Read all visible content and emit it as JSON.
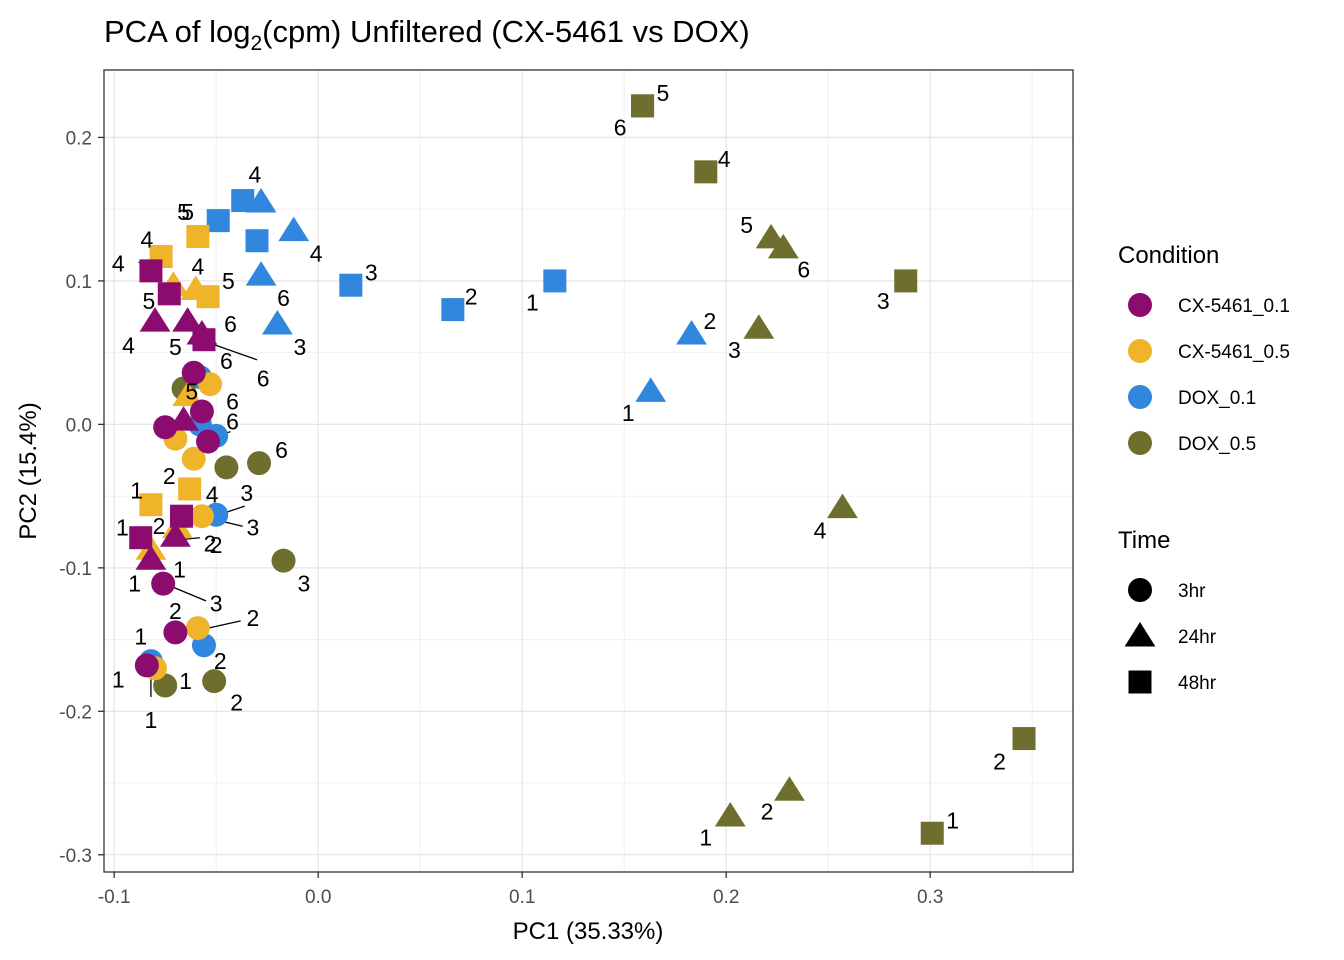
{
  "chart_data": {
    "type": "scatter",
    "title_main": "PCA of log",
    "title_sub": "2",
    "title_rest": "(cpm) Unfiltered (CX-5461 vs DOX)",
    "xlabel": "PC1 (35.33%)",
    "ylabel": "PC2 (15.4%)",
    "xlim": [
      -0.105,
      0.37
    ],
    "ylim": [
      -0.312,
      0.247
    ],
    "xticks": [
      -0.1,
      0.0,
      0.1,
      0.2,
      0.3
    ],
    "xtick_labels": [
      "-0.1",
      "0.0",
      "0.1",
      "0.2",
      "0.3"
    ],
    "yticks": [
      -0.3,
      -0.2,
      -0.1,
      0.0,
      0.1,
      0.2
    ],
    "ytick_labels": [
      "-0.3",
      "-0.2",
      "-0.1",
      "0.0",
      "0.1",
      "0.2"
    ],
    "legend_condition_title": "Condition",
    "legend_time_title": "Time",
    "conditions": [
      {
        "name": "CX-5461_0.1",
        "color": "#8B0B6F"
      },
      {
        "name": "CX-5461_0.5",
        "color": "#F0B42A"
      },
      {
        "name": "DOX_0.1",
        "color": "#3187DD"
      },
      {
        "name": "DOX_0.5",
        "color": "#6E6E2E"
      }
    ],
    "times": [
      {
        "name": "3hr",
        "shape": "circle"
      },
      {
        "name": "24hr",
        "shape": "triangle"
      },
      {
        "name": "48hr",
        "shape": "square"
      }
    ],
    "points": [
      {
        "cond": "DOX_0.5",
        "time": "48hr",
        "x": 0.159,
        "y": 0.222,
        "label": "5",
        "lx": 0.169,
        "ly": 0.231
      },
      {
        "cond": "DOX_0.5",
        "time": "48hr",
        "x": 0.159,
        "y": 0.222,
        "label": "6",
        "lx": 0.148,
        "ly": 0.207
      },
      {
        "cond": "DOX_0.5",
        "time": "48hr",
        "x": 0.19,
        "y": 0.176,
        "label": "4",
        "lx": 0.199,
        "ly": 0.185
      },
      {
        "cond": "DOX_0.5",
        "time": "24hr",
        "x": 0.222,
        "y": 0.13,
        "label": "5",
        "lx": 0.21,
        "ly": 0.139
      },
      {
        "cond": "DOX_0.5",
        "time": "24hr",
        "x": 0.228,
        "y": 0.123,
        "label": "6",
        "lx": 0.238,
        "ly": 0.108
      },
      {
        "cond": "DOX_0.5",
        "time": "48hr",
        "x": 0.288,
        "y": 0.1,
        "label": "3",
        "lx": 0.277,
        "ly": 0.086
      },
      {
        "cond": "DOX_0.5",
        "time": "24hr",
        "x": 0.216,
        "y": 0.067,
        "label": "3",
        "lx": 0.204,
        "ly": 0.052
      },
      {
        "cond": "DOX_0.5",
        "time": "24hr",
        "x": 0.257,
        "y": -0.058,
        "label": "4",
        "lx": 0.246,
        "ly": -0.074
      },
      {
        "cond": "DOX_0.5",
        "time": "48hr",
        "x": 0.346,
        "y": -0.219,
        "label": "2",
        "lx": 0.334,
        "ly": -0.235
      },
      {
        "cond": "DOX_0.5",
        "time": "24hr",
        "x": 0.231,
        "y": -0.255,
        "label": "2",
        "lx": 0.22,
        "ly": -0.27
      },
      {
        "cond": "DOX_0.5",
        "time": "24hr",
        "x": 0.202,
        "y": -0.273,
        "label": "1",
        "lx": 0.19,
        "ly": -0.288
      },
      {
        "cond": "DOX_0.5",
        "time": "48hr",
        "x": 0.301,
        "y": -0.285,
        "label": "1",
        "lx": 0.311,
        "ly": -0.276
      },
      {
        "cond": "DOX_0.1",
        "time": "48hr",
        "x": 0.116,
        "y": 0.1,
        "label": "1",
        "lx": 0.105,
        "ly": 0.085
      },
      {
        "cond": "DOX_0.1",
        "time": "48hr",
        "x": 0.066,
        "y": 0.08,
        "label": "2",
        "lx": 0.075,
        "ly": 0.089
      },
      {
        "cond": "DOX_0.1",
        "time": "48hr",
        "x": 0.016,
        "y": 0.097,
        "label": "3",
        "lx": 0.026,
        "ly": 0.106
      },
      {
        "cond": "DOX_0.1",
        "time": "24hr",
        "x": 0.183,
        "y": 0.063,
        "label": "2",
        "lx": 0.192,
        "ly": 0.072
      },
      {
        "cond": "DOX_0.1",
        "time": "24hr",
        "x": 0.163,
        "y": 0.023,
        "label": "1",
        "lx": 0.152,
        "ly": 0.008
      },
      {
        "cond": "DOX_0.1",
        "time": "48hr",
        "x": -0.037,
        "y": 0.156,
        "label": "",
        "lx": 0,
        "ly": 0
      },
      {
        "cond": "DOX_0.1",
        "time": "24hr",
        "x": -0.028,
        "y": 0.155,
        "label": "4",
        "lx": -0.031,
        "ly": 0.174
      },
      {
        "cond": "DOX_0.1",
        "time": "48hr",
        "x": -0.049,
        "y": 0.142,
        "label": "5",
        "lx": -0.064,
        "ly": 0.148
      },
      {
        "cond": "DOX_0.1",
        "time": "24hr",
        "x": -0.012,
        "y": 0.135,
        "label": "4",
        "lx": -0.001,
        "ly": 0.119
      },
      {
        "cond": "DOX_0.1",
        "time": "48hr",
        "x": -0.03,
        "y": 0.128,
        "label": "",
        "lx": 0,
        "ly": 0
      },
      {
        "cond": "DOX_0.1",
        "time": "24hr",
        "x": -0.028,
        "y": 0.104,
        "label": "6",
        "lx": -0.017,
        "ly": 0.088
      },
      {
        "cond": "DOX_0.1",
        "time": "24hr",
        "x": -0.02,
        "y": 0.07,
        "label": "3",
        "lx": -0.009,
        "ly": 0.054
      },
      {
        "cond": "DOX_0.1",
        "time": "3hr",
        "x": -0.05,
        "y": -0.008,
        "label": "6",
        "lx": -0.042,
        "ly": 0.002
      },
      {
        "cond": "DOX_0.1",
        "time": "3hr",
        "x": -0.058,
        "y": 0.033,
        "label": "",
        "lx": 0,
        "ly": 0
      },
      {
        "cond": "DOX_0.1",
        "time": "3hr",
        "x": -0.058,
        "y": 0.0,
        "label": "",
        "lx": 0,
        "ly": 0
      },
      {
        "cond": "DOX_0.1",
        "time": "3hr",
        "x": -0.05,
        "y": -0.063,
        "label": "3",
        "lx": -0.035,
        "ly": -0.048
      },
      {
        "cond": "DOX_0.1",
        "time": "3hr",
        "x": -0.056,
        "y": -0.154,
        "label": "2",
        "lx": -0.048,
        "ly": -0.165
      },
      {
        "cond": "DOX_0.1",
        "time": "3hr",
        "x": -0.082,
        "y": -0.165,
        "label": "1",
        "lx": -0.087,
        "ly": -0.148
      },
      {
        "cond": "DOX_0.5",
        "time": "3hr",
        "x": -0.066,
        "y": 0.025,
        "label": "",
        "lx": 0,
        "ly": 0
      },
      {
        "cond": "DOX_0.5",
        "time": "3hr",
        "x": -0.045,
        "y": -0.03,
        "label": "",
        "lx": 0,
        "ly": 0
      },
      {
        "cond": "DOX_0.5",
        "time": "3hr",
        "x": -0.029,
        "y": -0.027,
        "label": "6",
        "lx": -0.018,
        "ly": -0.018
      },
      {
        "cond": "DOX_0.5",
        "time": "3hr",
        "x": -0.017,
        "y": -0.095,
        "label": "3",
        "lx": -0.007,
        "ly": -0.111
      },
      {
        "cond": "DOX_0.5",
        "time": "3hr",
        "x": -0.051,
        "y": -0.179,
        "label": "2",
        "lx": -0.04,
        "ly": -0.194
      },
      {
        "cond": "DOX_0.5",
        "time": "3hr",
        "x": -0.075,
        "y": -0.182,
        "label": "1",
        "lx": -0.065,
        "ly": -0.179
      },
      {
        "cond": "CX-5461_0.5",
        "time": "48hr",
        "x": -0.077,
        "y": 0.117,
        "label": "4",
        "lx": -0.084,
        "ly": 0.129
      },
      {
        "cond": "CX-5461_0.5",
        "time": "48hr",
        "x": -0.059,
        "y": 0.131,
        "label": "5",
        "lx": -0.066,
        "ly": 0.148
      },
      {
        "cond": "CX-5461_0.5",
        "time": "24hr",
        "x": -0.071,
        "y": 0.097,
        "label": "4",
        "lx": -0.059,
        "ly": 0.11
      },
      {
        "cond": "CX-5461_0.5",
        "time": "24hr",
        "x": -0.06,
        "y": 0.094,
        "label": "",
        "lx": 0,
        "ly": 0
      },
      {
        "cond": "CX-5461_0.5",
        "time": "48hr",
        "x": -0.054,
        "y": 0.089,
        "label": "5",
        "lx": -0.044,
        "ly": 0.1
      },
      {
        "cond": "CX-5461_0.5",
        "time": "3hr",
        "x": -0.053,
        "y": 0.028,
        "label": "",
        "lx": 0,
        "ly": 0
      },
      {
        "cond": "CX-5461_0.5",
        "time": "24hr",
        "x": -0.064,
        "y": 0.02,
        "label": "",
        "lx": 0,
        "ly": 0
      },
      {
        "cond": "CX-5461_0.5",
        "time": "3hr",
        "x": -0.07,
        "y": -0.01,
        "label": "",
        "lx": 0,
        "ly": 0
      },
      {
        "cond": "CX-5461_0.5",
        "time": "3hr",
        "x": -0.061,
        "y": -0.024,
        "label": "2",
        "lx": -0.073,
        "ly": -0.036
      },
      {
        "cond": "CX-5461_0.5",
        "time": "48hr",
        "x": -0.063,
        "y": -0.045,
        "label": "4",
        "lx": -0.052,
        "ly": -0.049
      },
      {
        "cond": "CX-5461_0.5",
        "time": "48hr",
        "x": -0.082,
        "y": -0.056,
        "label": "1",
        "lx": -0.089,
        "ly": -0.046
      },
      {
        "cond": "CX-5461_0.5",
        "time": "3hr",
        "x": -0.057,
        "y": -0.064,
        "label": "",
        "lx": 0,
        "ly": 0
      },
      {
        "cond": "CX-5461_0.5",
        "time": "24hr",
        "x": -0.069,
        "y": -0.072,
        "label": "",
        "lx": 0,
        "ly": 0
      },
      {
        "cond": "CX-5461_0.5",
        "time": "24hr",
        "x": -0.082,
        "y": -0.087,
        "label": "",
        "lx": 0,
        "ly": 0
      },
      {
        "cond": "CX-5461_0.5",
        "time": "3hr",
        "x": -0.059,
        "y": -0.142,
        "label": "2",
        "lx": -0.032,
        "ly": -0.135
      },
      {
        "cond": "CX-5461_0.5",
        "time": "3hr",
        "x": -0.08,
        "y": -0.17,
        "label": "",
        "lx": 0,
        "ly": 0
      },
      {
        "cond": "CX-5461_0.1",
        "time": "48hr",
        "x": -0.082,
        "y": 0.107,
        "label": "4",
        "lx": -0.098,
        "ly": 0.112
      },
      {
        "cond": "CX-5461_0.1",
        "time": "48hr",
        "x": -0.073,
        "y": 0.091,
        "label": "",
        "lx": 0,
        "ly": 0
      },
      {
        "cond": "CX-5461_0.1",
        "time": "24hr",
        "x": -0.08,
        "y": 0.072,
        "label": "5",
        "lx": -0.083,
        "ly": 0.086
      },
      {
        "cond": "CX-5461_0.1",
        "time": "24hr",
        "x": -0.064,
        "y": 0.072,
        "label": "5",
        "lx": -0.07,
        "ly": 0.054
      },
      {
        "cond": "CX-5461_0.1",
        "time": "48hr",
        "x": -0.056,
        "y": 0.059,
        "label": "6",
        "lx": -0.043,
        "ly": 0.07
      },
      {
        "cond": "CX-5461_0.1",
        "time": "24hr",
        "x": -0.057,
        "y": 0.063,
        "label": "6",
        "lx": -0.045,
        "ly": 0.044
      },
      {
        "cond": "CX-5461_0.1",
        "time": "3hr",
        "x": -0.061,
        "y": 0.036,
        "label": "",
        "lx": 0,
        "ly": 0
      },
      {
        "cond": "CX-5461_0.1",
        "time": "3hr",
        "x": -0.057,
        "y": 0.009,
        "label": "",
        "lx": 0,
        "ly": 0
      },
      {
        "cond": "CX-5461_0.1",
        "time": "3hr",
        "x": -0.075,
        "y": -0.002,
        "label": "",
        "lx": 0,
        "ly": 0
      },
      {
        "cond": "CX-5461_0.1",
        "time": "24hr",
        "x": -0.066,
        "y": 0.003,
        "label": "",
        "lx": 0,
        "ly": 0
      },
      {
        "cond": "CX-5461_0.1",
        "time": "3hr",
        "x": -0.054,
        "y": -0.012,
        "label": "",
        "lx": 0,
        "ly": 0
      },
      {
        "cond": "CX-5461_0.1",
        "time": "48hr",
        "x": -0.067,
        "y": -0.064,
        "label": "2",
        "lx": -0.078,
        "ly": -0.071
      },
      {
        "cond": "CX-5461_0.1",
        "time": "48hr",
        "x": -0.087,
        "y": -0.079,
        "label": "1",
        "lx": -0.096,
        "ly": -0.072
      },
      {
        "cond": "CX-5461_0.1",
        "time": "24hr",
        "x": -0.07,
        "y": -0.078,
        "label": "2",
        "lx": -0.05,
        "ly": -0.084
      },
      {
        "cond": "CX-5461_0.1",
        "time": "24hr",
        "x": -0.082,
        "y": -0.094,
        "label": "1",
        "lx": -0.068,
        "ly": -0.101
      },
      {
        "cond": "CX-5461_0.1",
        "time": "3hr",
        "x": -0.076,
        "y": -0.111,
        "label": "1",
        "lx": -0.09,
        "ly": -0.111
      },
      {
        "cond": "CX-5461_0.1",
        "time": "3hr",
        "x": -0.07,
        "y": -0.145,
        "label": "2",
        "lx": -0.07,
        "ly": -0.13
      },
      {
        "cond": "CX-5461_0.1",
        "time": "3hr",
        "x": -0.084,
        "y": -0.168,
        "label": "",
        "lx": 0,
        "ly": 0
      }
    ],
    "extra_labels": [
      {
        "text": "4",
        "lx": -0.093,
        "ly": 0.055
      },
      {
        "text": "5",
        "lx": -0.062,
        "ly": 0.023
      },
      {
        "text": "6",
        "lx": -0.027,
        "ly": 0.032
      },
      {
        "text": "6",
        "lx": -0.042,
        "ly": 0.016
      },
      {
        "text": "1",
        "lx": -0.098,
        "ly": -0.178
      },
      {
        "text": "1",
        "lx": -0.082,
        "ly": -0.206
      },
      {
        "text": "3",
        "lx": -0.05,
        "ly": -0.125
      },
      {
        "text": "3",
        "lx": -0.032,
        "ly": -0.072
      },
      {
        "text": "2",
        "lx": -0.053,
        "ly": -0.083
      }
    ],
    "leader_lines": [
      [
        -0.088,
        0.113,
        -0.08,
        0.108
      ],
      [
        -0.051,
        0.137,
        -0.049,
        0.15
      ],
      [
        -0.052,
        0.056,
        -0.03,
        0.045
      ],
      [
        -0.052,
        -0.01,
        -0.043,
        -0.005
      ],
      [
        -0.053,
        -0.065,
        -0.036,
        -0.057
      ],
      [
        -0.052,
        -0.066,
        -0.037,
        -0.071
      ],
      [
        -0.065,
        -0.08,
        -0.058,
        -0.079
      ],
      [
        -0.072,
        -0.113,
        -0.055,
        -0.123
      ],
      [
        -0.057,
        -0.143,
        -0.038,
        -0.137
      ],
      [
        -0.082,
        -0.171,
        -0.082,
        -0.19
      ]
    ]
  }
}
